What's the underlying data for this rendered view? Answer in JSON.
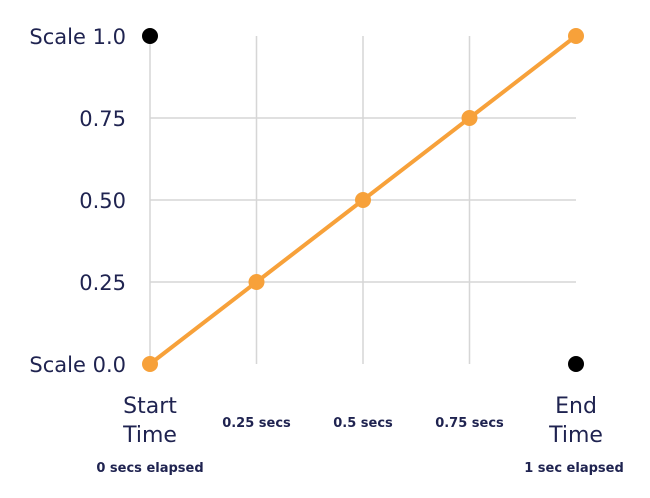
{
  "chart_data": {
    "type": "line",
    "x": [
      0,
      0.25,
      0.5,
      0.75,
      1.0
    ],
    "y_ticks": [
      {
        "value": 1.0,
        "label": "Scale 1.0"
      },
      {
        "value": 0.75,
        "label": "0.75"
      },
      {
        "value": 0.5,
        "label": "0.50"
      },
      {
        "value": 0.25,
        "label": "0.25"
      },
      {
        "value": 0.0,
        "label": "Scale 0.0"
      }
    ],
    "x_ticks": [
      {
        "value": 0.25,
        "label": "0.25 secs"
      },
      {
        "value": 0.5,
        "label": "0.5 secs"
      },
      {
        "value": 0.75,
        "label": "0.75 secs"
      }
    ],
    "x_end_labels": {
      "start": {
        "line1": "Start",
        "line2": "Time",
        "sub": "0 secs elapsed"
      },
      "end": {
        "line1": "End",
        "line2": "Time",
        "sub": "1 sec elapsed"
      }
    },
    "series": [
      {
        "values": [
          0,
          0.25,
          0.5,
          0.75,
          1.0
        ],
        "color": "#f7a13a"
      }
    ],
    "corner_markers": [
      {
        "x": 0,
        "y": 1.0,
        "color": "#000000"
      },
      {
        "x": 1.0,
        "y": 0.0,
        "color": "#000000"
      }
    ],
    "xlim": [
      0,
      1
    ],
    "ylim": [
      0,
      1
    ],
    "grid": true
  }
}
